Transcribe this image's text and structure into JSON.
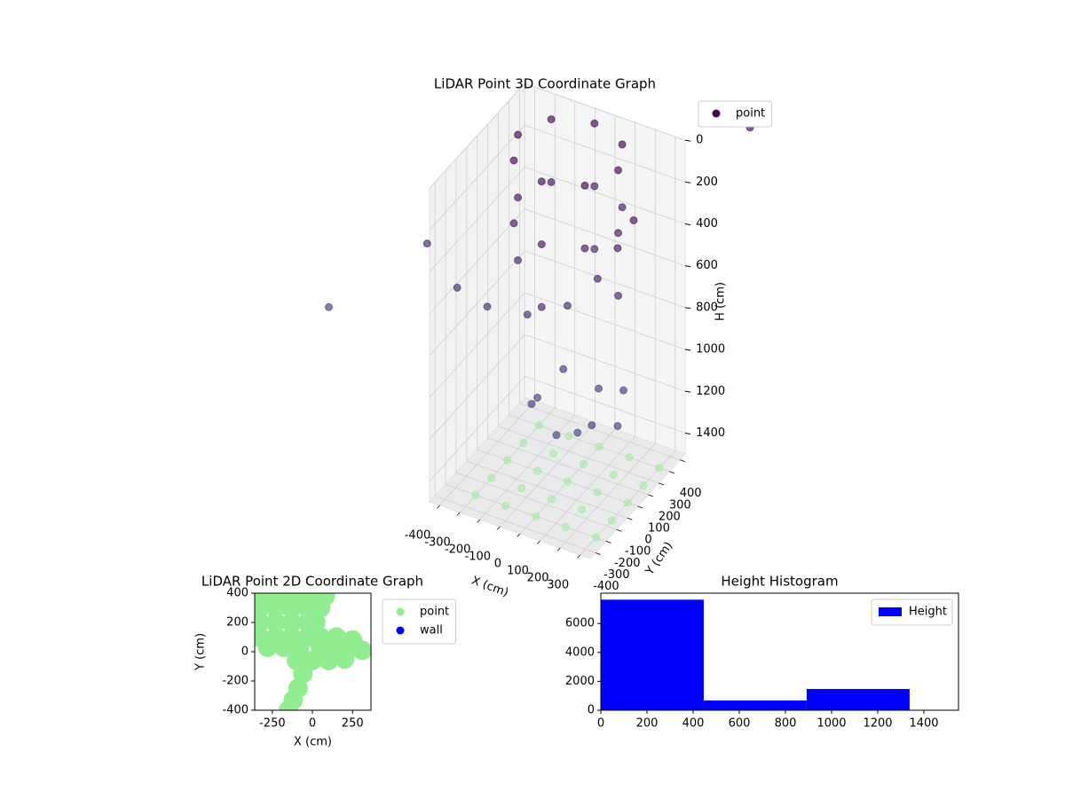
{
  "chart_data": [
    {
      "type": "scatter3d",
      "title": "LiDAR Point 3D Coordinate Graph",
      "xlabel": "X (cm)",
      "ylabel": "Y (cm)",
      "zlabel": "H (cm)",
      "xlim": [
        -450,
        350
      ],
      "ylim": [
        -450,
        450
      ],
      "zlim": [
        0,
        1500
      ],
      "zinverted": true,
      "xticks": [
        -400,
        -300,
        -200,
        -100,
        0,
        100,
        200,
        300
      ],
      "yticks": [
        -400,
        -300,
        -200,
        -100,
        0,
        100,
        200,
        300,
        400
      ],
      "zticks": [
        0,
        200,
        400,
        600,
        800,
        1000,
        1200,
        1400
      ],
      "legend": "upper right",
      "series": [
        {
          "name": "point",
          "color": "#440154",
          "colormap": [
            "#440154",
            "#3b528b"
          ],
          "x": [
            200,
            127,
            -50,
            -227,
            -300,
            -227,
            -50,
            127,
            200,
            127,
            -50,
            -227,
            -300,
            -227,
            -50,
            127,
            200,
            -50,
            -300,
            -50,
            -700,
            -550,
            -400,
            -200,
            0,
            150,
            250,
            330,
            -1190,
            910,
            50,
            250,
            -150,
            50,
            50,
            200,
            -100,
            200,
            -100
          ],
          "y": [
            100,
            277,
            350,
            277,
            100,
            -77,
            -150,
            -77,
            100,
            277,
            350,
            277,
            100,
            -77,
            -150,
            -77,
            100,
            350,
            100,
            -150,
            0,
            0,
            0,
            0,
            0,
            0,
            0,
            0,
            0,
            0,
            0,
            0,
            0,
            200,
            -200,
            150,
            150,
            -150,
            -150
          ],
          "z": [
            0,
            0,
            0,
            0,
            0,
            0,
            0,
            0,
            300,
            300,
            300,
            300,
            300,
            300,
            300,
            300,
            600,
            600,
            600,
            600,
            600,
            760,
            800,
            770,
            660,
            480,
            300,
            140,
            1070,
            -500,
            1250,
            1150,
            1150,
            1150,
            1150,
            1080,
            1080,
            1080,
            1080
          ]
        },
        {
          "color": "#90ee90",
          "x": [
            -300,
            -150,
            0,
            150,
            300,
            -300,
            -150,
            0,
            150,
            300,
            -300,
            -150,
            0,
            150,
            300,
            -300,
            -150,
            0,
            150,
            300,
            -300,
            -150,
            0,
            150,
            300
          ],
          "y": [
            -300,
            -300,
            -300,
            -300,
            -300,
            -150,
            -150,
            -150,
            -150,
            -150,
            0,
            0,
            0,
            0,
            0,
            150,
            150,
            150,
            150,
            150,
            300,
            300,
            300,
            300,
            300
          ],
          "z": [
            1500,
            1500,
            1500,
            1500,
            1500,
            1500,
            1500,
            1500,
            1500,
            1500,
            1500,
            1500,
            1500,
            1500,
            1500,
            1500,
            1500,
            1500,
            1500,
            1500,
            1500,
            1500,
            1500,
            1500,
            1500
          ]
        }
      ]
    },
    {
      "type": "scatter",
      "title": "LiDAR Point 2D Coordinate Graph",
      "xlabel": "X (cm)",
      "ylabel": "Y (cm)",
      "xlim": [
        -360,
        365
      ],
      "ylim": [
        -400,
        400
      ],
      "xticks": [
        -250,
        0,
        250
      ],
      "yticks": [
        -400,
        -200,
        0,
        200,
        400
      ],
      "legend": "outside right",
      "series": [
        {
          "name": "point",
          "color": "#90ee90",
          "x": [
            -330,
            -230,
            -130,
            -30,
            80,
            -330,
            -230,
            -130,
            -30,
            50,
            -330,
            -230,
            -130,
            -30,
            20,
            -330,
            -230,
            -130,
            -30,
            50,
            150,
            250,
            -280,
            -180,
            -80,
            50,
            150,
            250,
            310,
            -100,
            0,
            100,
            200,
            -60,
            -90,
            -120,
            -150
          ],
          "y": [
            380,
            380,
            380,
            380,
            380,
            300,
            300,
            300,
            300,
            300,
            200,
            200,
            200,
            200,
            200,
            100,
            100,
            100,
            100,
            100,
            100,
            80,
            30,
            30,
            30,
            30,
            30,
            30,
            10,
            -60,
            -60,
            -60,
            -50,
            -150,
            -250,
            -330,
            -400
          ]
        },
        {
          "name": "wall",
          "color": "#0000ff",
          "x": [],
          "y": []
        }
      ]
    },
    {
      "type": "hist",
      "title": "Height Histogram",
      "name": "Height",
      "color": "#0000ff",
      "bins": [
        0,
        446,
        892,
        1338
      ],
      "counts": [
        7650,
        675,
        1470
      ],
      "xlim": [
        0,
        1550
      ],
      "ylim": [
        0,
        8100
      ],
      "xticks": [
        0,
        200,
        400,
        600,
        800,
        1000,
        1200,
        1400
      ],
      "yticks": [
        0,
        2000,
        4000,
        6000
      ],
      "legend": "upper right"
    }
  ]
}
